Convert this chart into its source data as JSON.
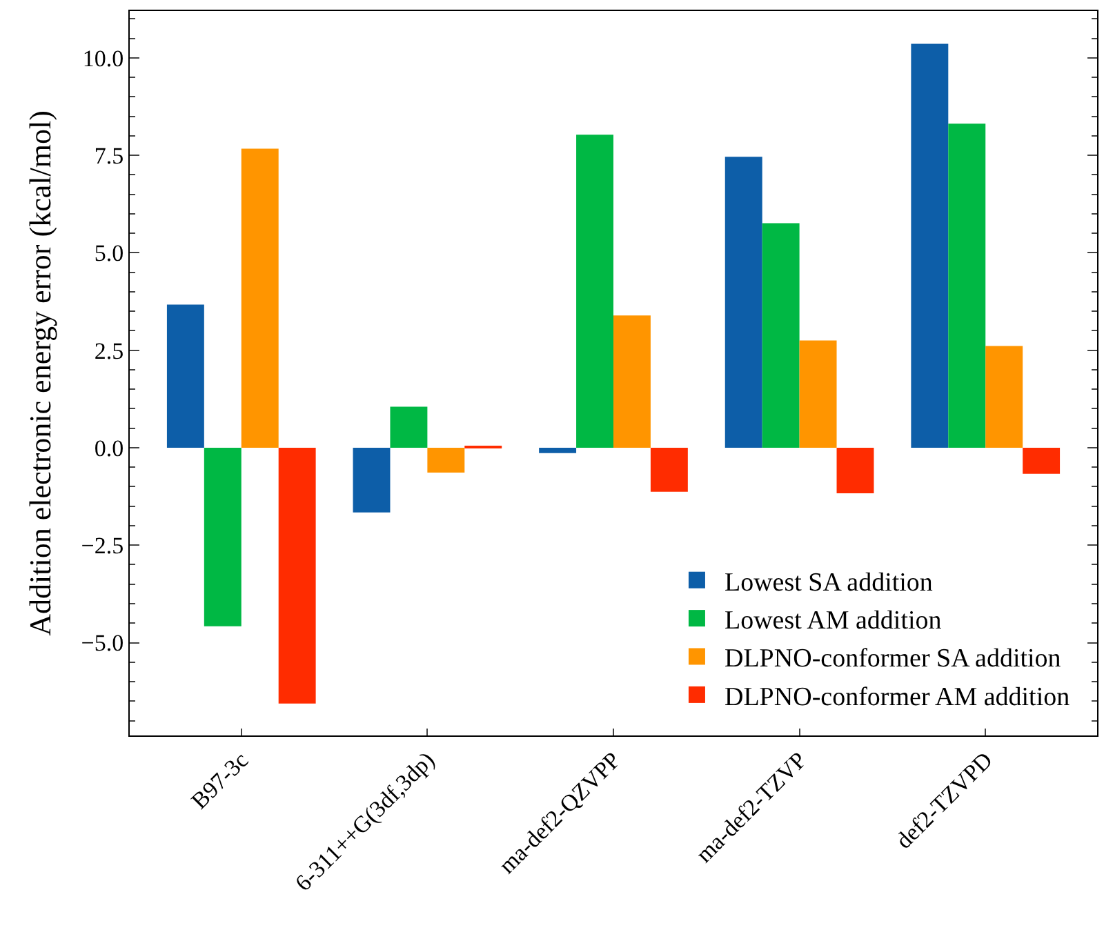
{
  "chart_data": {
    "type": "bar",
    "ylabel": "Addition electronic energy error (kcal/mol)",
    "categories": [
      "B97-3c",
      "6-311++G(3df,3dp)",
      "ma-def2-QZVPP",
      "ma-def2-TZVP",
      "def2-TZVPD"
    ],
    "series": [
      {
        "name": "Lowest SA addition",
        "color": "#0d5ea8",
        "values": [
          3.67,
          -1.66,
          -0.14,
          7.46,
          10.36
        ]
      },
      {
        "name": "Lowest AM addition",
        "color": "#00b844",
        "values": [
          -4.58,
          1.05,
          8.03,
          5.76,
          8.31
        ]
      },
      {
        "name": "DLPNO-conformer SA addition",
        "color": "#ff9500",
        "values": [
          7.67,
          -0.64,
          3.39,
          2.75,
          2.61
        ]
      },
      {
        "name": "DLPNO-conformer AM addition",
        "color": "#ff2c00",
        "values": [
          -6.56,
          0.03,
          -1.13,
          -1.17,
          -0.67
        ]
      }
    ],
    "ylim": [
      -7.38,
      11.2
    ],
    "yticks": [
      {
        "value": -5,
        "label": "−5.0"
      },
      {
        "value": -2.5,
        "label": "−2.5"
      },
      {
        "value": 0,
        "label": "0.0"
      },
      {
        "value": 2.5,
        "label": "2.5"
      },
      {
        "value": 5,
        "label": "5.0"
      },
      {
        "value": 7.5,
        "label": "7.5"
      },
      {
        "value": 10,
        "label": "10.0"
      }
    ],
    "legend": "bottom right"
  }
}
